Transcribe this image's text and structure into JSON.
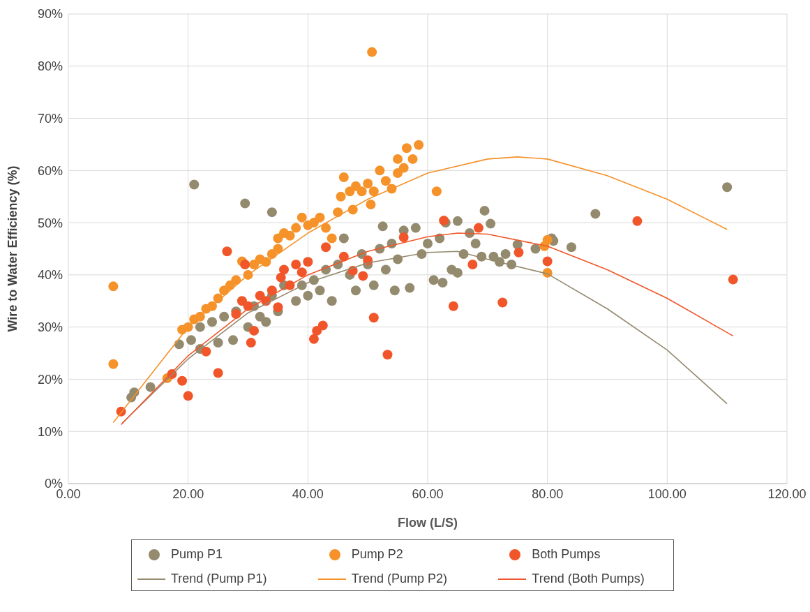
{
  "chart_data": {
    "type": "scatter",
    "xlabel": "Flow (L/S)",
    "ylabel": "Wire to Water Efficiency (%)",
    "xlim": [
      0,
      120
    ],
    "xticks": [
      {
        "value": 0,
        "label": "0.00"
      },
      {
        "value": 20,
        "label": "20.00"
      },
      {
        "value": 40,
        "label": "40.00"
      },
      {
        "value": 60,
        "label": "60.00"
      },
      {
        "value": 80,
        "label": "80.00"
      },
      {
        "value": 100,
        "label": "100.00"
      },
      {
        "value": 120,
        "label": "120.00"
      }
    ],
    "ylim": [
      0,
      90
    ],
    "yticks": [
      {
        "value": 0,
        "label": "0%"
      },
      {
        "value": 10,
        "label": "10%"
      },
      {
        "value": 20,
        "label": "20%"
      },
      {
        "value": 30,
        "label": "30%"
      },
      {
        "value": 40,
        "label": "40%"
      },
      {
        "value": 50,
        "label": "50%"
      },
      {
        "value": 60,
        "label": "60%"
      },
      {
        "value": 70,
        "label": "70%"
      },
      {
        "value": 80,
        "label": "80%"
      },
      {
        "value": 90,
        "label": "90%"
      }
    ],
    "grid": true,
    "legend": "bottom",
    "marker": "circle",
    "series": [
      {
        "name": "Pump P1",
        "color": "#948a6e",
        "x": [
          10.5,
          11,
          13.7,
          18.5,
          20.5,
          21,
          22,
          22,
          24,
          25,
          26,
          27.5,
          28,
          29.5,
          30,
          31,
          32,
          33,
          34,
          34,
          35,
          36,
          38,
          39,
          40,
          41,
          42,
          43,
          44,
          45,
          46,
          47,
          48,
          49,
          50,
          51,
          52,
          52.5,
          53,
          54,
          54.5,
          55,
          56,
          57,
          58,
          59,
          60,
          61,
          62,
          62.5,
          63,
          64,
          65,
          65,
          66,
          67,
          68,
          69,
          69.5,
          70.5,
          71,
          72,
          73,
          74,
          75,
          78,
          80.7,
          81,
          84,
          88,
          110
        ],
        "values": [
          16.5,
          17.5,
          18.5,
          26.7,
          27.5,
          57.3,
          25.8,
          30,
          31,
          27,
          32,
          27.5,
          33,
          53.7,
          30,
          34,
          32,
          31,
          52,
          36,
          33,
          38,
          35,
          38,
          36,
          39,
          37,
          41,
          35,
          42,
          47,
          40,
          37,
          44,
          42,
          38,
          45,
          49.3,
          41,
          46,
          37,
          43,
          48.5,
          37.5,
          49,
          44,
          46,
          39,
          47,
          38.5,
          50,
          41,
          50.3,
          40.4,
          44,
          48,
          46,
          43.5,
          52.3,
          49.8,
          43.5,
          42.5,
          44,
          42,
          45.8,
          45,
          47,
          46.5,
          45.3,
          51.7,
          56.8
        ]
      },
      {
        "name": "Pump P2",
        "color": "#f5922a",
        "x": [
          7.5,
          7.5,
          16.5,
          19,
          20,
          21,
          22,
          23,
          24,
          25,
          26,
          27,
          28,
          29,
          30,
          31,
          32,
          33,
          34,
          35,
          35,
          36,
          37,
          38,
          39,
          40,
          41,
          42,
          43,
          44,
          45,
          45.5,
          46,
          47,
          47.5,
          48,
          49,
          50,
          50.5,
          50.7,
          51,
          52,
          53,
          54,
          55,
          55,
          56,
          56.5,
          57.5,
          58.5,
          61.5,
          79.5,
          80,
          80
        ],
        "values": [
          37.8,
          22.9,
          20.2,
          29.5,
          30,
          31.5,
          32,
          33.5,
          34,
          35.5,
          37,
          38,
          39,
          42.6,
          40,
          42,
          43,
          42.5,
          44,
          45,
          47,
          48,
          47.5,
          49,
          51,
          49.5,
          50,
          51,
          49,
          47,
          52,
          55,
          58.7,
          56,
          52.5,
          57,
          56,
          57.5,
          53.5,
          82.7,
          56,
          60,
          58,
          56.5,
          62.2,
          59.5,
          60.5,
          64.3,
          62.2,
          64.9,
          56,
          45.5,
          46.7,
          40.4
        ]
      },
      {
        "name": "Both Pumps",
        "color": "#f0562a",
        "x": [
          8.8,
          17.3,
          19,
          20,
          23,
          25,
          26.5,
          28,
          29.5,
          29,
          30,
          30.5,
          31,
          32,
          33,
          34,
          35,
          35.5,
          36,
          37,
          38,
          39,
          40,
          41,
          41.5,
          42.5,
          43,
          46,
          47.5,
          49.2,
          50,
          51,
          53.3,
          56,
          62.7,
          64.3,
          67.5,
          68.5,
          72.5,
          75.2,
          80,
          95,
          111
        ],
        "values": [
          13.8,
          21,
          19.7,
          16.8,
          25.3,
          21.2,
          44.5,
          32.5,
          42,
          35,
          34,
          27,
          29.3,
          36,
          35,
          37,
          33.8,
          39.5,
          41,
          38,
          42,
          40.5,
          42.5,
          27.7,
          29.3,
          30.3,
          45.3,
          43.5,
          40.8,
          39.8,
          42.8,
          31.8,
          24.7,
          47.2,
          50.4,
          34,
          42,
          49,
          34.7,
          44.3,
          42.6,
          50.3,
          39.1
        ]
      },
      {
        "name": "Trend (Pump P1)",
        "type": "line",
        "marker": "none",
        "color": "#948a6e",
        "x": [
          9,
          20,
          30,
          40,
          50,
          60,
          65,
          70,
          80,
          90,
          100,
          110
        ],
        "values": [
          11.6,
          23.9,
          32.7,
          38.5,
          42.3,
          44.3,
          44.5,
          43,
          40.2,
          33.5,
          25.6,
          15.3
        ]
      },
      {
        "name": "Trend (Pump P2)",
        "type": "line",
        "marker": "none",
        "color": "#f5922a",
        "x": [
          7.5,
          20,
          30,
          40,
          50,
          60,
          70,
          75,
          80,
          90,
          100,
          110
        ],
        "values": [
          11.7,
          30,
          40,
          48,
          54.5,
          59.5,
          62.2,
          62.6,
          62.2,
          59,
          54.5,
          48.7
        ]
      },
      {
        "name": "Trend (Both Pumps)",
        "type": "line",
        "marker": "none",
        "color": "#f0562a",
        "x": [
          8.8,
          20,
          30,
          40,
          50,
          60,
          65,
          70,
          80,
          90,
          100,
          111
        ],
        "values": [
          11.3,
          24.5,
          33.5,
          40,
          44.5,
          47.3,
          48,
          47.8,
          45.5,
          41,
          35.5,
          28.3
        ]
      }
    ]
  }
}
